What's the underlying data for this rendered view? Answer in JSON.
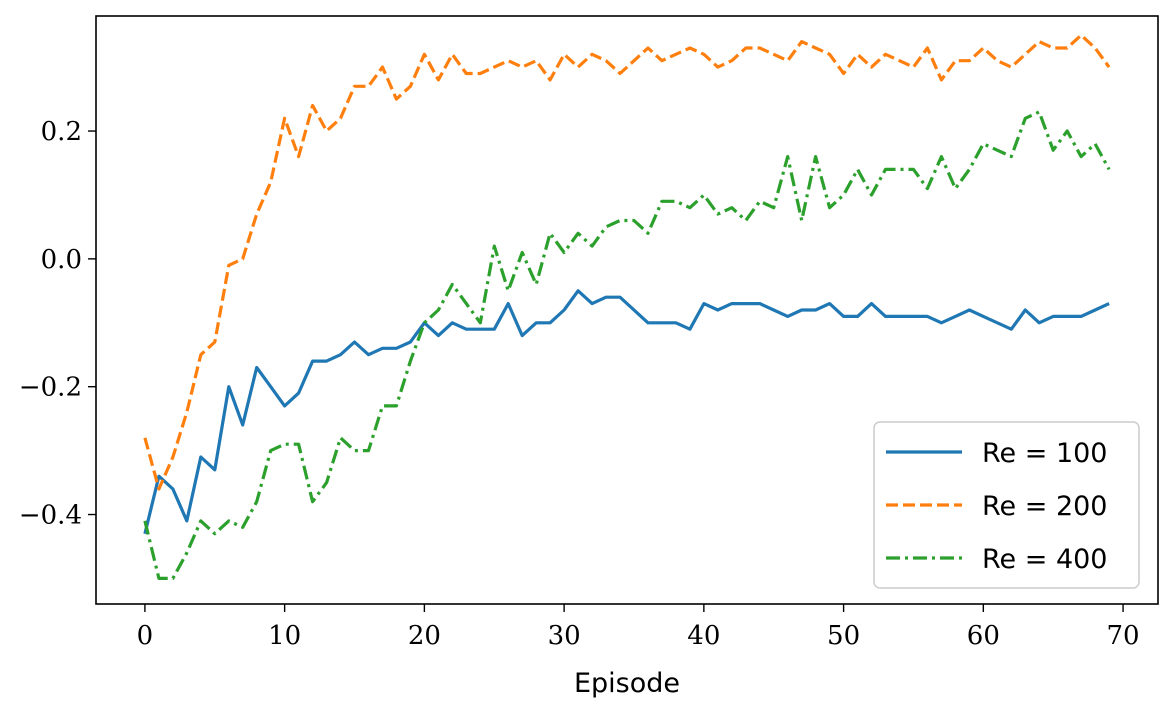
{
  "chart_data": {
    "type": "line",
    "title": "",
    "xlabel": "Episode",
    "ylabel": "",
    "xlim": [
      -3.5,
      72.5
    ],
    "ylim": [
      -0.54,
      0.38
    ],
    "xticks": [
      0,
      10,
      20,
      30,
      40,
      50,
      60,
      70
    ],
    "xtick_labels": [
      "0",
      "10",
      "20",
      "30",
      "40",
      "50",
      "60",
      "70"
    ],
    "yticks": [
      -0.4,
      -0.2,
      0.0,
      0.2
    ],
    "ytick_labels": [
      "−0.4",
      "−0.2",
      "0.0",
      "0.2"
    ],
    "grid": false,
    "legend_position": "lower-right",
    "series": [
      {
        "name": "Re = 100",
        "color": "#1f77b4",
        "style": "solid",
        "values": [
          -0.43,
          -0.34,
          -0.36,
          -0.41,
          -0.31,
          -0.33,
          -0.2,
          -0.26,
          -0.17,
          -0.2,
          -0.23,
          -0.21,
          -0.16,
          -0.16,
          -0.15,
          -0.13,
          -0.15,
          -0.14,
          -0.14,
          -0.13,
          -0.1,
          -0.12,
          -0.1,
          -0.11,
          -0.11,
          -0.11,
          -0.07,
          -0.12,
          -0.1,
          -0.1,
          -0.08,
          -0.05,
          -0.07,
          -0.06,
          -0.06,
          -0.08,
          -0.1,
          -0.1,
          -0.1,
          -0.11,
          -0.07,
          -0.08,
          -0.07,
          -0.07,
          -0.07,
          -0.08,
          -0.09,
          -0.08,
          -0.08,
          -0.07,
          -0.09,
          -0.09,
          -0.07,
          -0.09,
          -0.09,
          -0.09,
          -0.09,
          -0.1,
          -0.09,
          -0.08,
          -0.09,
          -0.1,
          -0.11,
          -0.08,
          -0.1,
          -0.09,
          -0.09,
          -0.09,
          -0.08,
          -0.07
        ]
      },
      {
        "name": "Re = 200",
        "color": "#ff7f0e",
        "style": "dashed",
        "values": [
          -0.28,
          -0.36,
          -0.31,
          -0.24,
          -0.15,
          -0.13,
          -0.01,
          0.0,
          0.07,
          0.12,
          0.22,
          0.16,
          0.24,
          0.2,
          0.22,
          0.27,
          0.27,
          0.3,
          0.25,
          0.27,
          0.32,
          0.28,
          0.32,
          0.29,
          0.29,
          0.3,
          0.31,
          0.3,
          0.31,
          0.28,
          0.32,
          0.3,
          0.32,
          0.31,
          0.29,
          0.31,
          0.33,
          0.31,
          0.32,
          0.33,
          0.32,
          0.3,
          0.31,
          0.33,
          0.33,
          0.32,
          0.31,
          0.34,
          0.33,
          0.32,
          0.29,
          0.32,
          0.3,
          0.32,
          0.31,
          0.3,
          0.33,
          0.28,
          0.31,
          0.31,
          0.33,
          0.31,
          0.3,
          0.32,
          0.34,
          0.33,
          0.33,
          0.35,
          0.33,
          0.3
        ]
      },
      {
        "name": "Re = 400",
        "color": "#2ca02c",
        "style": "dashdot",
        "values": [
          -0.41,
          -0.5,
          -0.5,
          -0.46,
          -0.41,
          -0.43,
          -0.41,
          -0.42,
          -0.38,
          -0.3,
          -0.29,
          -0.29,
          -0.38,
          -0.35,
          -0.28,
          -0.3,
          -0.3,
          -0.23,
          -0.23,
          -0.16,
          -0.1,
          -0.08,
          -0.04,
          -0.07,
          -0.1,
          0.02,
          -0.05,
          0.01,
          -0.04,
          0.04,
          0.01,
          0.04,
          0.02,
          0.05,
          0.06,
          0.06,
          0.04,
          0.09,
          0.09,
          0.08,
          0.1,
          0.07,
          0.08,
          0.06,
          0.09,
          0.08,
          0.16,
          0.06,
          0.16,
          0.08,
          0.1,
          0.14,
          0.1,
          0.14,
          0.14,
          0.14,
          0.11,
          0.16,
          0.11,
          0.14,
          0.18,
          0.17,
          0.16,
          0.22,
          0.23,
          0.17,
          0.2,
          0.16,
          0.18,
          0.14
        ]
      }
    ]
  }
}
